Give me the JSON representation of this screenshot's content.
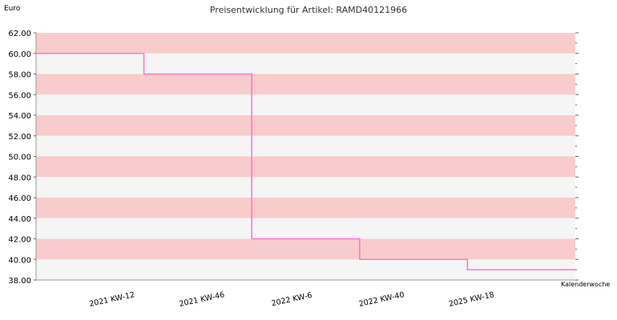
{
  "chart_data": {
    "type": "line",
    "step": true,
    "title": "Preisentwicklung für Artikel: RAMD40121966",
    "ylabel": "Euro",
    "xlabel": "Kalenderwoche",
    "ylim": [
      38.0,
      62.0
    ],
    "yticks": [
      "38.00",
      "40.00",
      "42.00",
      "44.00",
      "46.00",
      "48.00",
      "50.00",
      "52.00",
      "54.00",
      "56.00",
      "58.00",
      "60.00",
      "62.00"
    ],
    "categories": [
      "2021 KW-12",
      "2021 KW-46",
      "2022 KW-6",
      "2022 KW-40",
      "2025 KW-18"
    ],
    "values": [
      60.0,
      58.0,
      42.0,
      40.0,
      39.0
    ],
    "grid": "horizontal alternating bands",
    "colors": {
      "band_light": "#f5f5f5",
      "band_dark": "#f8cccc",
      "line": "#ff77cc",
      "axis": "#999999"
    }
  }
}
